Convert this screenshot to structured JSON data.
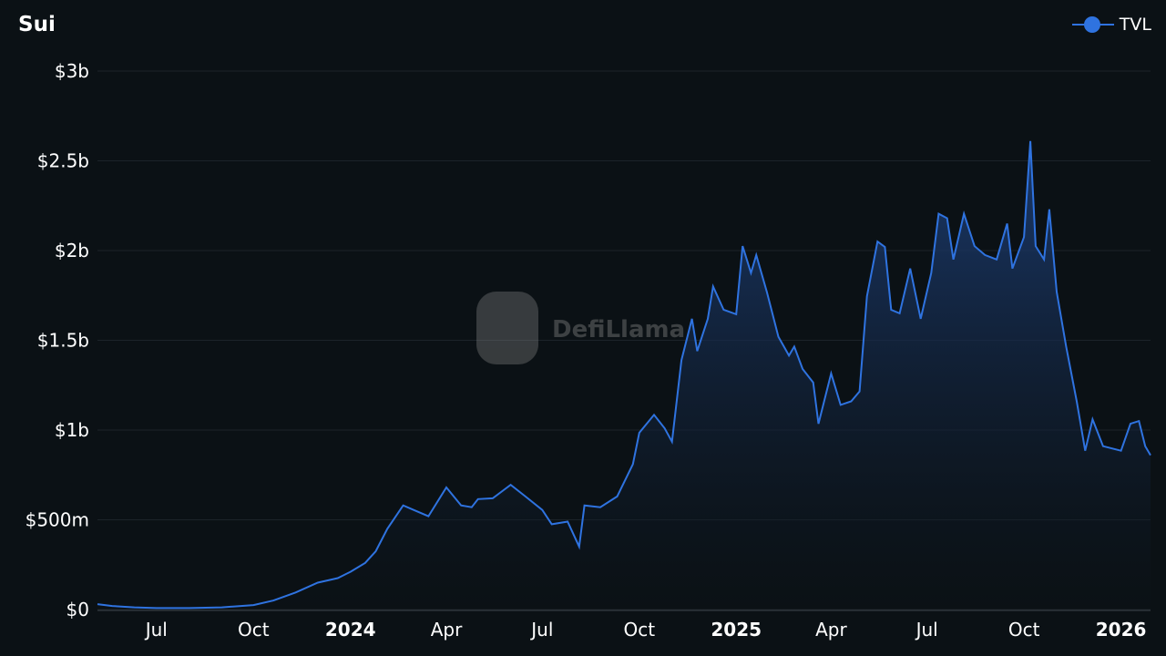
{
  "chart_data": {
    "type": "area",
    "title": "Sui",
    "xlabel": "",
    "ylabel": "",
    "legend": {
      "position": "top-right",
      "entries": [
        "TVL"
      ]
    },
    "grid": true,
    "ylim": [
      0,
      3000
    ],
    "y_unit": "USD millions",
    "y_ticks": [
      {
        "value": 0,
        "label": "$0"
      },
      {
        "value": 500,
        "label": "$500m"
      },
      {
        "value": 1000,
        "label": "$1b"
      },
      {
        "value": 1500,
        "label": "$1.5b"
      },
      {
        "value": 2000,
        "label": "$2b"
      },
      {
        "value": 2500,
        "label": "$2.5b"
      },
      {
        "value": 3000,
        "label": "$3b"
      }
    ],
    "xlim": [
      "2023-05-06",
      "2026-01-29"
    ],
    "x_ticks": [
      {
        "date": "2023-07-01",
        "label": "Jul",
        "bold": false
      },
      {
        "date": "2023-10-01",
        "label": "Oct",
        "bold": false
      },
      {
        "date": "2024-01-01",
        "label": "2024",
        "bold": true
      },
      {
        "date": "2024-04-01",
        "label": "Apr",
        "bold": false
      },
      {
        "date": "2024-07-01",
        "label": "Jul",
        "bold": false
      },
      {
        "date": "2024-10-01",
        "label": "Oct",
        "bold": false
      },
      {
        "date": "2025-01-01",
        "label": "2025",
        "bold": true
      },
      {
        "date": "2025-04-01",
        "label": "Apr",
        "bold": false
      },
      {
        "date": "2025-07-01",
        "label": "Jul",
        "bold": false
      },
      {
        "date": "2025-10-01",
        "label": "Oct",
        "bold": false
      },
      {
        "date": "2026-01-01",
        "label": "2026",
        "bold": true
      }
    ],
    "colors": {
      "line": "#2f73e0",
      "fill_top": "#1d3f78",
      "background": "#0b1115"
    },
    "series": [
      {
        "name": "TVL",
        "points": [
          [
            "2023-05-06",
            30
          ],
          [
            "2023-05-20",
            20
          ],
          [
            "2023-06-10",
            12
          ],
          [
            "2023-07-01",
            8
          ],
          [
            "2023-08-01",
            8
          ],
          [
            "2023-09-01",
            12
          ],
          [
            "2023-10-01",
            25
          ],
          [
            "2023-10-20",
            50
          ],
          [
            "2023-11-10",
            95
          ],
          [
            "2023-12-01",
            150
          ],
          [
            "2023-12-20",
            175
          ],
          [
            "2024-01-01",
            210
          ],
          [
            "2024-01-15",
            260
          ],
          [
            "2024-01-25",
            325
          ],
          [
            "2024-02-05",
            450
          ],
          [
            "2024-02-20",
            580
          ],
          [
            "2024-03-01",
            555
          ],
          [
            "2024-03-15",
            520
          ],
          [
            "2024-04-01",
            680
          ],
          [
            "2024-04-15",
            580
          ],
          [
            "2024-04-25",
            570
          ],
          [
            "2024-05-01",
            615
          ],
          [
            "2024-05-15",
            620
          ],
          [
            "2024-06-01",
            695
          ],
          [
            "2024-06-15",
            630
          ],
          [
            "2024-07-01",
            555
          ],
          [
            "2024-07-10",
            475
          ],
          [
            "2024-07-25",
            490
          ],
          [
            "2024-08-05",
            350
          ],
          [
            "2024-08-10",
            580
          ],
          [
            "2024-08-25",
            570
          ],
          [
            "2024-09-10",
            630
          ],
          [
            "2024-09-25",
            810
          ],
          [
            "2024-10-01",
            985
          ],
          [
            "2024-10-15",
            1085
          ],
          [
            "2024-10-25",
            1010
          ],
          [
            "2024-11-01",
            935
          ],
          [
            "2024-11-10",
            1390
          ],
          [
            "2024-11-20",
            1620
          ],
          [
            "2024-11-25",
            1440
          ],
          [
            "2024-12-05",
            1620
          ],
          [
            "2024-12-10",
            1800
          ],
          [
            "2024-12-20",
            1670
          ],
          [
            "2025-01-01",
            1645
          ],
          [
            "2025-01-07",
            2025
          ],
          [
            "2025-01-15",
            1875
          ],
          [
            "2025-01-20",
            1975
          ],
          [
            "2025-01-30",
            1770
          ],
          [
            "2025-02-10",
            1520
          ],
          [
            "2025-02-20",
            1415
          ],
          [
            "2025-02-25",
            1465
          ],
          [
            "2025-03-05",
            1340
          ],
          [
            "2025-03-15",
            1265
          ],
          [
            "2025-03-20",
            1035
          ],
          [
            "2025-04-01",
            1315
          ],
          [
            "2025-04-10",
            1140
          ],
          [
            "2025-04-20",
            1160
          ],
          [
            "2025-04-28",
            1215
          ],
          [
            "2025-05-05",
            1745
          ],
          [
            "2025-05-15",
            2050
          ],
          [
            "2025-05-22",
            2020
          ],
          [
            "2025-05-28",
            1670
          ],
          [
            "2025-06-05",
            1650
          ],
          [
            "2025-06-15",
            1900
          ],
          [
            "2025-06-25",
            1620
          ],
          [
            "2025-07-05",
            1875
          ],
          [
            "2025-07-12",
            2205
          ],
          [
            "2025-07-20",
            2180
          ],
          [
            "2025-07-26",
            1950
          ],
          [
            "2025-08-05",
            2205
          ],
          [
            "2025-08-15",
            2025
          ],
          [
            "2025-08-25",
            1975
          ],
          [
            "2025-09-05",
            1950
          ],
          [
            "2025-09-15",
            2150
          ],
          [
            "2025-09-20",
            1900
          ],
          [
            "2025-10-01",
            2075
          ],
          [
            "2025-10-07",
            2610
          ],
          [
            "2025-10-12",
            2025
          ],
          [
            "2025-10-20",
            1950
          ],
          [
            "2025-10-25",
            2230
          ],
          [
            "2025-11-01",
            1770
          ],
          [
            "2025-11-10",
            1465
          ],
          [
            "2025-11-20",
            1160
          ],
          [
            "2025-11-28",
            885
          ],
          [
            "2025-12-05",
            1060
          ],
          [
            "2025-12-15",
            910
          ],
          [
            "2026-01-01",
            885
          ],
          [
            "2026-01-10",
            1035
          ],
          [
            "2026-01-18",
            1050
          ],
          [
            "2026-01-24",
            910
          ],
          [
            "2026-01-29",
            860
          ]
        ]
      }
    ]
  },
  "watermark": {
    "text": "DefiLlama",
    "icon": "llama-logo"
  }
}
